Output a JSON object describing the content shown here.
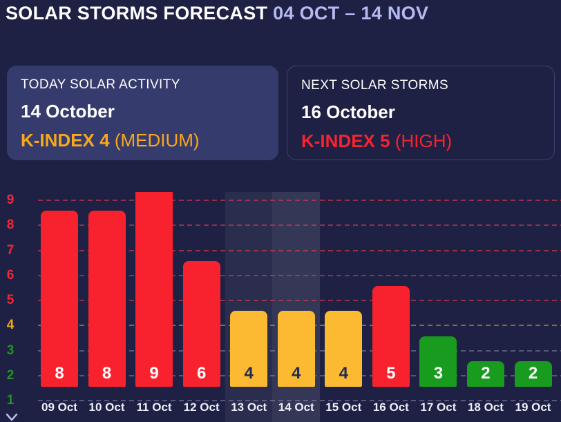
{
  "header": {
    "title": "SOLAR STORMS FORECAST",
    "range": "04 OCT – 14 NOV"
  },
  "cards": {
    "today": {
      "label": "TODAY SOLAR ACTIVITY",
      "date": "14 October",
      "kindex": "K-INDEX 4",
      "level": "(MEDIUM)",
      "color": "#f9a81b"
    },
    "next": {
      "label": "NEXT SOLAR STORMS",
      "date": "16 October",
      "kindex": "K-INDEX 5",
      "level": "(HIGH)",
      "color": "#f8232e"
    }
  },
  "chart_data": {
    "type": "bar",
    "title": "",
    "xlabel": "",
    "ylabel": "",
    "categories": [
      "09 Oct",
      "10 Oct",
      "11 Oct",
      "12 Oct",
      "13 Oct",
      "14 Oct",
      "15 Oct",
      "16 Oct",
      "17 Oct",
      "18 Oct",
      "19 Oct"
    ],
    "values": [
      8,
      8,
      9,
      6,
      4,
      4,
      4,
      5,
      3,
      2,
      2
    ],
    "yticks": [
      1,
      2,
      3,
      4,
      5,
      6,
      7,
      8,
      9
    ],
    "ylim": [
      1,
      9
    ],
    "grid": true,
    "legend": false,
    "highlighted_categories": [
      "13 Oct",
      "14 Oct"
    ],
    "today_category": "14 Oct",
    "severity_rule": {
      "high_min": 5,
      "medium": 4
    },
    "colors": {
      "bar_high": "#f8222f",
      "bar_medium": "#fcba32",
      "bar_low": "#189b1f",
      "tick_high": "#f32735",
      "tick_medium": "#eda714",
      "tick_low": "#1e9623",
      "grid_high": "rgba(244,60,72,0.55)",
      "grid_medium": "rgba(237,167,20,0.55)",
      "grid_low": "rgba(148,156,196,0.45)",
      "label_on_high": "#ffffff",
      "label_on_medium": "#252a52",
      "label_on_low": "#ffffff",
      "highlight": "rgba(255,255,255,0.055)",
      "highlight_today": "rgba(255,255,255,0.10)"
    }
  },
  "icons": {
    "scroll_chevron": "chevron-down"
  }
}
